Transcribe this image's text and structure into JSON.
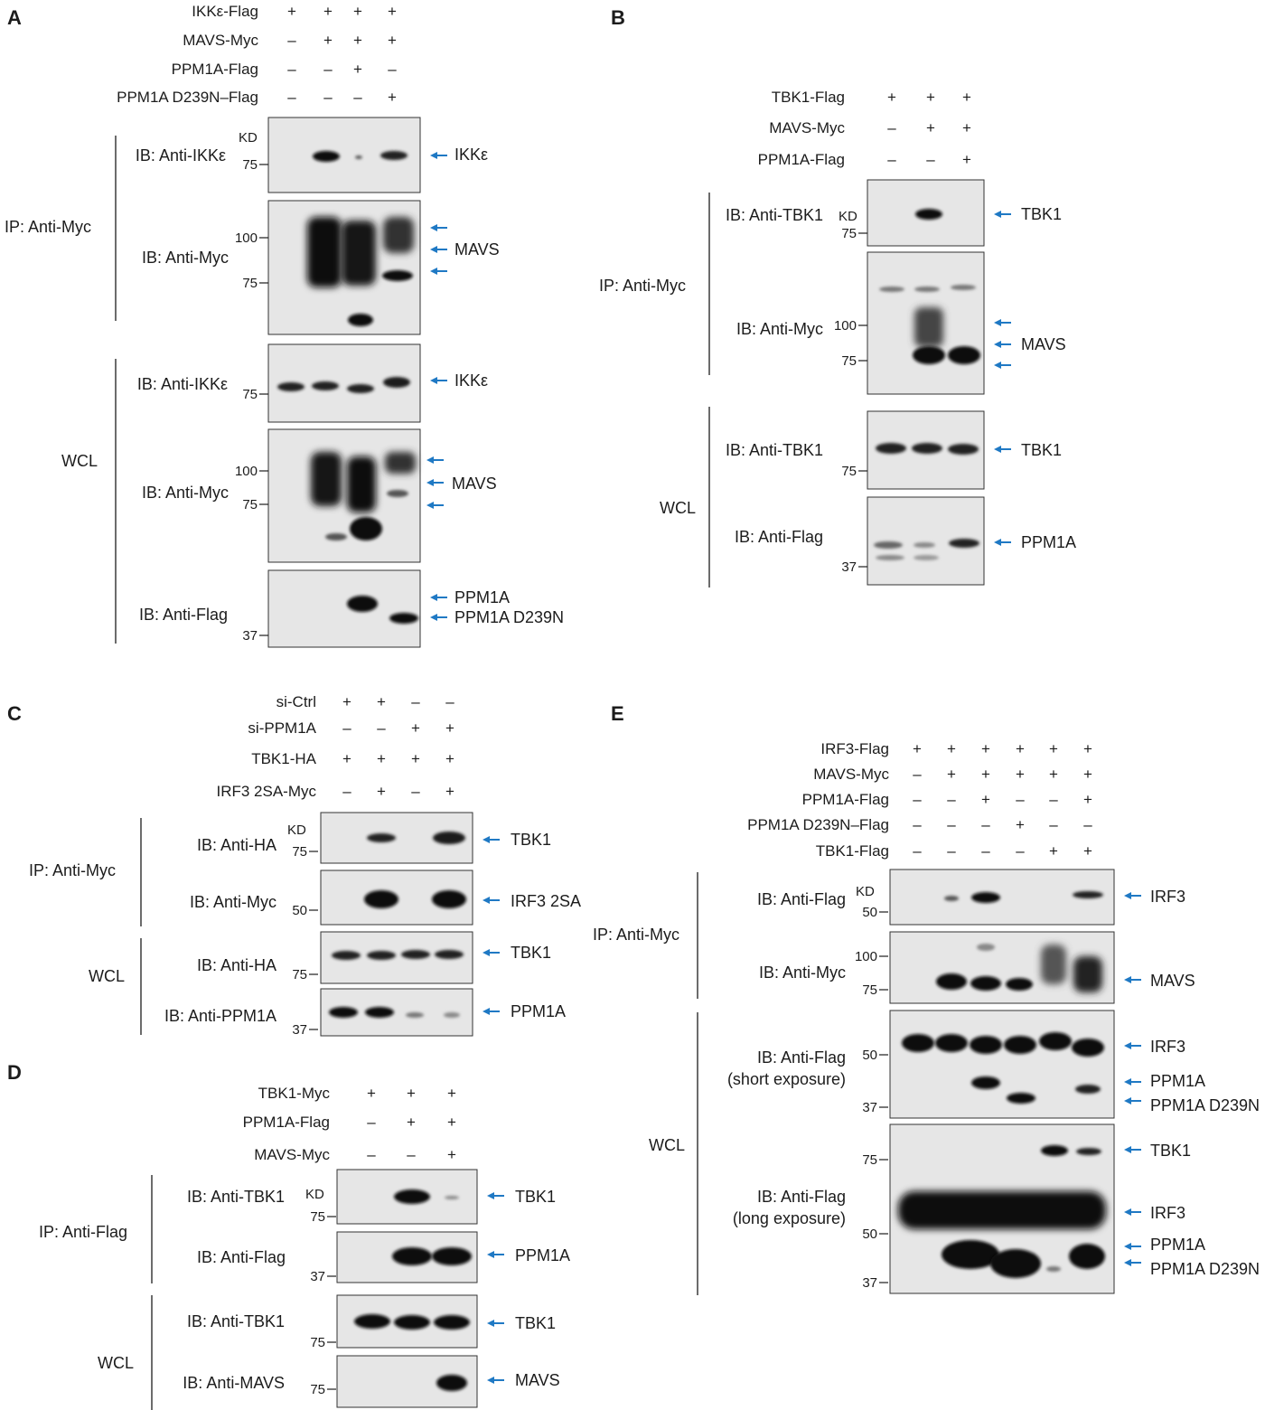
{
  "figure": {
    "panels": [
      {
        "letter": "A",
        "conditions": [
          {
            "label": "IKKε-Flag",
            "marks": [
              "+",
              "+",
              "+",
              "+"
            ]
          },
          {
            "label": "MAVS-Myc",
            "marks": [
              "–",
              "+",
              "+",
              "+"
            ]
          },
          {
            "label": "PPM1A-Flag",
            "marks": [
              "–",
              "–",
              "+",
              "–"
            ]
          },
          {
            "label": "PPM1A D239N–Flag",
            "marks": [
              "–",
              "–",
              "–",
              "+"
            ]
          }
        ],
        "groups": [
          "IP: Anti-Myc",
          "WCL"
        ],
        "blots": [
          {
            "ib": [
              "IB: Anti-IKKε"
            ],
            "kd_label": "KD",
            "markers": [
              "75"
            ],
            "targets": [
              "IKKε"
            ],
            "arrow_only_count": 0
          },
          {
            "ib": [
              "IB: Anti-Myc"
            ],
            "markers": [
              "100",
              "75"
            ],
            "targets": [
              "MAVS"
            ],
            "arrow_only_count": 2
          },
          {
            "ib": [
              "IB: Anti-IKKε"
            ],
            "markers": [
              "75"
            ],
            "targets": [
              "IKKε"
            ],
            "arrow_only_count": 0
          },
          {
            "ib": [
              "IB: Anti-Myc"
            ],
            "markers": [
              "100",
              "75"
            ],
            "targets": [
              "MAVS"
            ],
            "arrow_only_count": 2
          },
          {
            "ib": [
              "IB: Anti-Flag"
            ],
            "markers": [
              "37"
            ],
            "targets": [
              "PPM1A",
              "PPM1A D239N"
            ],
            "arrow_only_count": 0
          }
        ]
      },
      {
        "letter": "B",
        "conditions": [
          {
            "label": "TBK1-Flag",
            "marks": [
              "+",
              "+",
              "+"
            ]
          },
          {
            "label": "MAVS-Myc",
            "marks": [
              "–",
              "+",
              "+"
            ]
          },
          {
            "label": "PPM1A-Flag",
            "marks": [
              "–",
              "–",
              "+"
            ]
          }
        ],
        "groups": [
          "IP: Anti-Myc",
          "WCL"
        ],
        "blots": [
          {
            "ib": [
              "IB: Anti-TBK1"
            ],
            "kd_label": "KD",
            "markers": [
              "75"
            ],
            "targets": [
              "TBK1"
            ],
            "arrow_only_count": 0
          },
          {
            "ib": [
              "IB: Anti-Myc"
            ],
            "markers": [
              "100",
              "75"
            ],
            "targets": [
              "MAVS"
            ],
            "arrow_only_count": 2
          },
          {
            "ib": [
              "IB: Anti-TBK1"
            ],
            "markers": [
              "75"
            ],
            "targets": [
              "TBK1"
            ],
            "arrow_only_count": 0
          },
          {
            "ib": [
              "IB: Anti-Flag"
            ],
            "markers": [
              "37"
            ],
            "targets": [
              "PPM1A"
            ],
            "arrow_only_count": 0
          }
        ]
      },
      {
        "letter": "C",
        "conditions": [
          {
            "label": "si-Ctrl",
            "marks": [
              "+",
              "+",
              "–",
              "–"
            ]
          },
          {
            "label": "si-PPM1A",
            "marks": [
              "–",
              "–",
              "+",
              "+"
            ]
          },
          {
            "label": "TBK1-HA",
            "marks": [
              "+",
              "+",
              "+",
              "+"
            ]
          },
          {
            "label": "IRF3 2SA-Myc",
            "marks": [
              "–",
              "+",
              "–",
              "+"
            ]
          }
        ],
        "groups": [
          "IP: Anti-Myc",
          "WCL"
        ],
        "blots": [
          {
            "ib": [
              "IB: Anti-HA"
            ],
            "kd_label": "KD",
            "markers": [
              "75"
            ],
            "targets": [
              "TBK1"
            ],
            "arrow_only_count": 0
          },
          {
            "ib": [
              "IB: Anti-Myc"
            ],
            "markers": [
              "50"
            ],
            "targets": [
              "IRF3 2SA"
            ],
            "arrow_only_count": 0
          },
          {
            "ib": [
              "IB: Anti-HA"
            ],
            "markers": [
              "75"
            ],
            "targets": [
              "TBK1"
            ],
            "arrow_only_count": 0
          },
          {
            "ib": [
              "IB: Anti-PPM1A"
            ],
            "markers": [
              "37"
            ],
            "targets": [
              "PPM1A"
            ],
            "arrow_only_count": 0
          }
        ]
      },
      {
        "letter": "D",
        "conditions": [
          {
            "label": "TBK1-Myc",
            "marks": [
              "+",
              "+",
              "+"
            ]
          },
          {
            "label": "PPM1A-Flag",
            "marks": [
              "–",
              "+",
              "+"
            ]
          },
          {
            "label": "MAVS-Myc",
            "marks": [
              "–",
              "–",
              "+"
            ]
          }
        ],
        "groups": [
          "IP: Anti-Flag",
          "WCL"
        ],
        "blots": [
          {
            "ib": [
              "IB: Anti-TBK1"
            ],
            "kd_label": "KD",
            "markers": [
              "75"
            ],
            "targets": [
              "TBK1"
            ],
            "arrow_only_count": 0
          },
          {
            "ib": [
              "IB: Anti-Flag"
            ],
            "markers": [
              "37"
            ],
            "targets": [
              "PPM1A"
            ],
            "arrow_only_count": 0
          },
          {
            "ib": [
              "IB: Anti-TBK1"
            ],
            "markers": [
              "75"
            ],
            "targets": [
              "TBK1"
            ],
            "arrow_only_count": 0
          },
          {
            "ib": [
              "IB: Anti-MAVS"
            ],
            "markers": [
              "75"
            ],
            "targets": [
              "MAVS"
            ],
            "arrow_only_count": 0
          }
        ]
      },
      {
        "letter": "E",
        "conditions": [
          {
            "label": "IRF3-Flag",
            "marks": [
              "+",
              "+",
              "+",
              "+",
              "+",
              "+"
            ]
          },
          {
            "label": "MAVS-Myc",
            "marks": [
              "–",
              "+",
              "+",
              "+",
              "+",
              "+"
            ]
          },
          {
            "label": "PPM1A-Flag",
            "marks": [
              "–",
              "–",
              "+",
              "–",
              "–",
              "+"
            ]
          },
          {
            "label": "PPM1A D239N–Flag",
            "marks": [
              "–",
              "–",
              "–",
              "+",
              "–",
              "–"
            ]
          },
          {
            "label": "TBK1-Flag",
            "marks": [
              "–",
              "–",
              "–",
              "–",
              "+",
              "+"
            ]
          }
        ],
        "groups": [
          "IP: Anti-Myc",
          "WCL"
        ],
        "blots": [
          {
            "ib": [
              "IB: Anti-Flag"
            ],
            "kd_label": "KD",
            "markers": [
              "50"
            ],
            "targets": [
              "IRF3"
            ],
            "arrow_only_count": 0
          },
          {
            "ib": [
              "IB: Anti-Myc"
            ],
            "markers": [
              "100",
              "75"
            ],
            "targets": [
              "MAVS"
            ],
            "arrow_only_count": 0
          },
          {
            "ib": [
              "IB: Anti-Flag",
              "(short exposure)"
            ],
            "markers": [
              "50",
              "37"
            ],
            "targets": [
              "IRF3",
              "PPM1A",
              "PPM1A D239N"
            ],
            "arrow_only_count": 0
          },
          {
            "ib": [
              "IB: Anti-Flag",
              "(long exposure)"
            ],
            "markers": [
              "75",
              "50",
              "37"
            ],
            "targets": [
              "TBK1",
              "IRF3",
              "PPM1A",
              "PPM1A D239N"
            ],
            "arrow_only_count": 0
          }
        ]
      }
    ]
  },
  "colors": {
    "arrow": "#1f79c4",
    "ink": "#1c1c1c",
    "band": "#111111",
    "blot_bg": "#e6e6e6"
  }
}
